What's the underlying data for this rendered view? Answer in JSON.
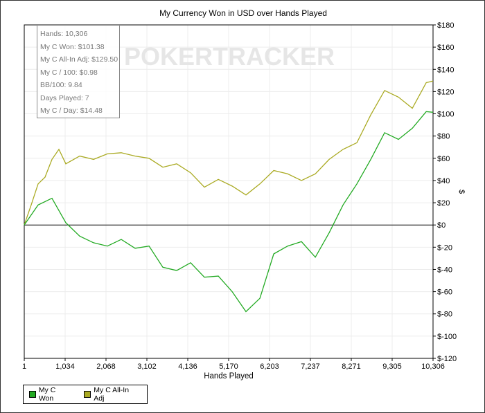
{
  "chart_data": {
    "type": "line",
    "title": "My Currency Won in USD over Hands Played",
    "xlabel": "Hands Played",
    "ylabel": "$",
    "xlim": [
      1,
      10306
    ],
    "ylim": [
      -120,
      180
    ],
    "xticks": [
      "1",
      "1,034",
      "2,068",
      "3,102",
      "4,136",
      "5,170",
      "6,203",
      "7,237",
      "8,271",
      "9,305",
      "10,306"
    ],
    "yticks": [
      {
        "v": 180,
        "l": "$180"
      },
      {
        "v": 160,
        "l": "$160"
      },
      {
        "v": 140,
        "l": "$140"
      },
      {
        "v": 120,
        "l": "$120"
      },
      {
        "v": 100,
        "l": "$100"
      },
      {
        "v": 80,
        "l": "$80"
      },
      {
        "v": 60,
        "l": "$60"
      },
      {
        "v": 40,
        "l": "$40"
      },
      {
        "v": 20,
        "l": "$20"
      },
      {
        "v": 0,
        "l": "$0"
      },
      {
        "v": -20,
        "l": "$-20"
      },
      {
        "v": -40,
        "l": "$-40"
      },
      {
        "v": -60,
        "l": "$-60"
      },
      {
        "v": -80,
        "l": "$-80"
      },
      {
        "v": -100,
        "l": "$-100"
      },
      {
        "v": -120,
        "l": "$-120"
      }
    ],
    "grid": true,
    "legend_position": "bottom-left",
    "series": [
      {
        "name": "My C Won",
        "color": "#22aa22",
        "x": [
          1,
          350,
          700,
          1049,
          1398,
          1748,
          2097,
          2447,
          2796,
          3146,
          3495,
          3844,
          4194,
          4543,
          4893,
          5242,
          5591,
          5941,
          6290,
          6640,
          6989,
          7338,
          7688,
          8037,
          8387,
          8736,
          9085,
          9435,
          9784,
          10134,
          10306
        ],
        "y": [
          0,
          18,
          24,
          2,
          -10,
          -16,
          -19,
          -13,
          -21,
          -19,
          -38,
          -41,
          -34,
          -47,
          -46,
          -60,
          -78,
          -66,
          -26,
          -19,
          -15,
          -29,
          -7,
          18,
          37,
          59,
          83,
          77,
          87,
          102,
          101.38
        ]
      },
      {
        "name": "My C All-In Adj",
        "color": "#aaaa22",
        "x": [
          1,
          176,
          350,
          525,
          700,
          874,
          1049,
          1398,
          1748,
          2097,
          2447,
          2796,
          3146,
          3495,
          3844,
          4194,
          4543,
          4893,
          5242,
          5591,
          5941,
          6290,
          6640,
          6989,
          7338,
          7688,
          8037,
          8387,
          8736,
          9085,
          9435,
          9784,
          10134,
          10306
        ],
        "y": [
          0,
          18,
          37,
          43,
          59,
          68,
          55,
          62,
          59,
          64,
          65,
          62,
          60,
          52,
          55,
          47,
          34,
          41,
          35,
          27,
          37,
          49,
          46,
          40,
          46,
          59,
          68,
          74,
          99,
          121,
          115,
          105,
          128,
          129.5
        ]
      }
    ]
  },
  "stats": [
    "Hands: 10,306",
    "My C Won: $101.38",
    "My C All-In Adj: $129.50",
    "My C / 100: $0.98",
    "BB/100: 9.84",
    "Days Played: 7",
    "My C / Day: $14.48"
  ],
  "watermark": "POKERTRACKER"
}
